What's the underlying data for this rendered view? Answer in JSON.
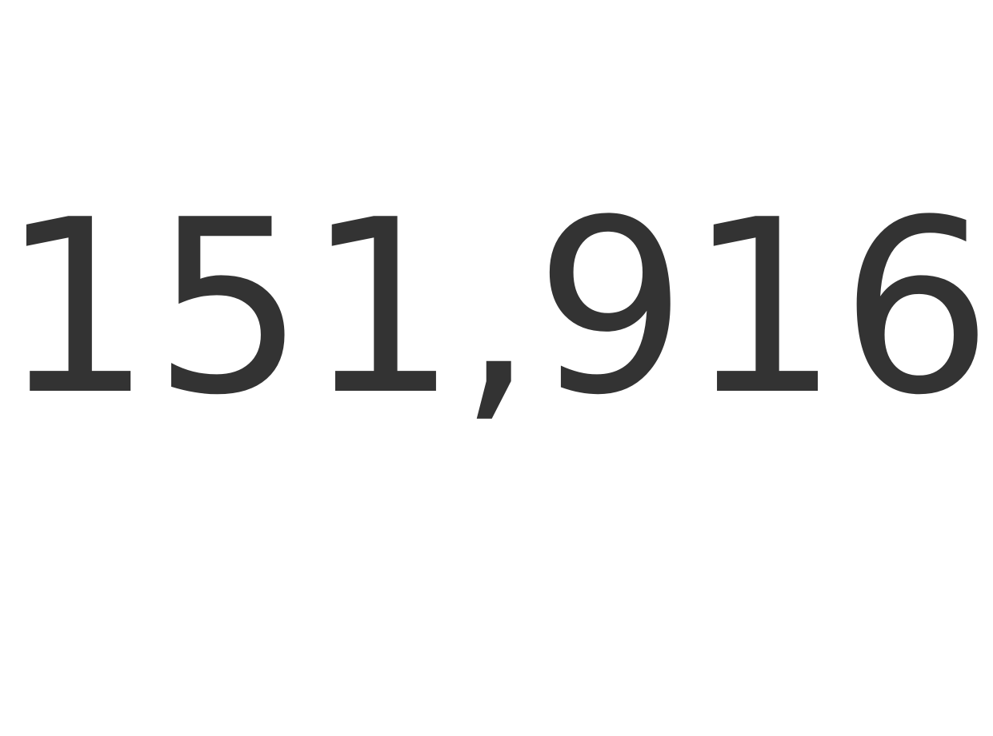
{
  "chart_data": {
    "type": "table",
    "value": "151,916",
    "title": "",
    "subtitle": ""
  },
  "colors": {
    "text": "#333333",
    "background": "#ffffff"
  }
}
